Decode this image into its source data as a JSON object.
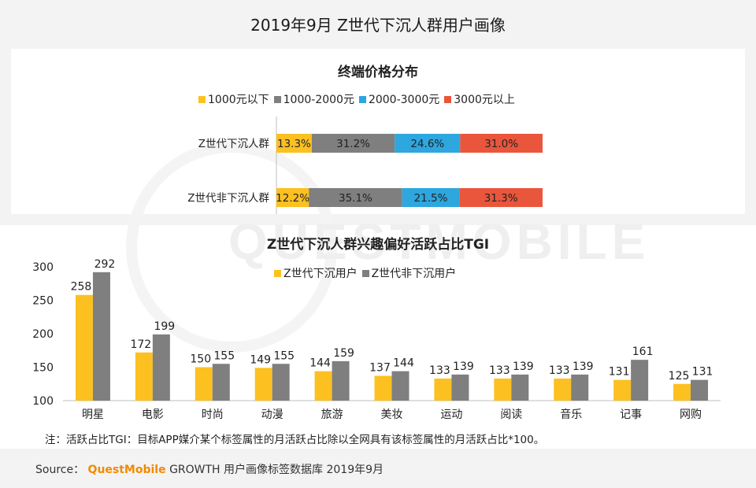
{
  "page": {
    "title": "2019年9月 Z世代下沉人群用户画像"
  },
  "watermark": "QUESTMOBILE",
  "colors": {
    "yellow": "#fcc021",
    "gray": "#7f7f7f",
    "blue": "#2ea6de",
    "red": "#e9563c"
  },
  "footnote": "注：活跃占比TGI：目标APP媒介某个标签属性的月活跃占比除以全网具有该标签属性的月活跃占比*100。",
  "source": {
    "prefix": "Source：",
    "brand": "QuestMobile",
    "rest": "GROWTH 用户画像标签数据库  2019年9月"
  },
  "chart_data": [
    {
      "type": "bar",
      "orientation": "horizontal",
      "stacked": "percent",
      "title": "终端价格分布",
      "categories": [
        "Z世代下沉人群",
        "Z世代非下沉人群"
      ],
      "series": [
        {
          "name": "1000元以下",
          "color": "#fcc021",
          "values": [
            13.3,
            12.2
          ]
        },
        {
          "name": "1000-2000元",
          "color": "#7f7f7f",
          "values": [
            31.2,
            35.1
          ]
        },
        {
          "name": "2000-3000元",
          "color": "#2ea6de",
          "values": [
            24.6,
            21.5
          ]
        },
        {
          "name": "3000元以上",
          "color": "#e9563c",
          "values": [
            31.0,
            31.3
          ]
        }
      ],
      "value_suffix": "%",
      "legend": "top-center"
    },
    {
      "type": "bar",
      "title": "Z世代下沉人群兴趣偏好活跃占比TGI",
      "categories": [
        "明星",
        "电影",
        "时尚",
        "动漫",
        "旅游",
        "美妆",
        "运动",
        "阅读",
        "音乐",
        "记事",
        "网购"
      ],
      "series": [
        {
          "name": "Z世代下沉用户",
          "color": "#fcc021",
          "values": [
            258,
            172,
            150,
            149,
            144,
            137,
            133,
            133,
            133,
            131,
            125
          ]
        },
        {
          "name": "Z世代非下沉用户",
          "color": "#7f7f7f",
          "values": [
            292,
            199,
            155,
            155,
            159,
            144,
            139,
            139,
            139,
            161,
            131
          ]
        }
      ],
      "ylim": [
        100,
        300
      ],
      "yticks": [
        100,
        150,
        200,
        250,
        300
      ],
      "legend": "top-center"
    }
  ]
}
